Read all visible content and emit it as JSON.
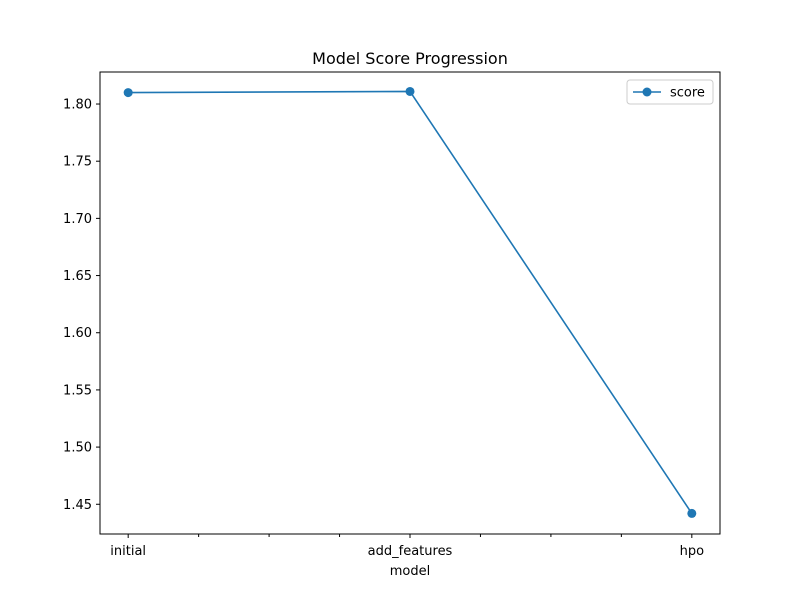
{
  "chart_data": {
    "type": "line",
    "title": "Model Score Progression",
    "xlabel": "model",
    "ylabel": "",
    "categories": [
      "initial",
      "add_features",
      "hpo"
    ],
    "series": [
      {
        "name": "score",
        "values": [
          1.81,
          1.811,
          1.442
        ],
        "color": "#1f77b4",
        "marker": "circle"
      }
    ],
    "ylim": [
      1.424,
      1.828
    ],
    "yticks": [
      1.45,
      1.5,
      1.55,
      1.6,
      1.65,
      1.7,
      1.75,
      1.8
    ],
    "ytick_labels": [
      "1.45",
      "1.50",
      "1.55",
      "1.60",
      "1.65",
      "1.70",
      "1.75",
      "1.80"
    ],
    "minor_xticks": [
      0.25,
      0.5,
      0.75,
      1.25,
      1.5,
      1.75
    ],
    "grid": false,
    "legend_position": "top-right"
  }
}
